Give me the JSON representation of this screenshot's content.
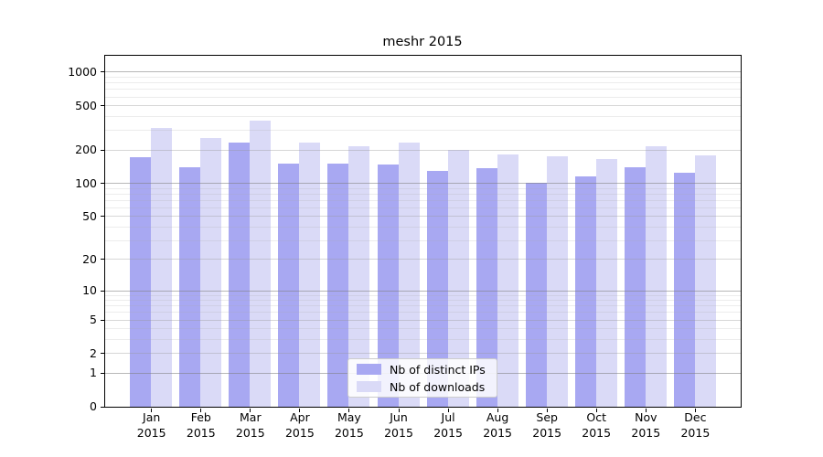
{
  "chart_data": {
    "type": "bar",
    "title": "meshr 2015",
    "categories": [
      "Jan",
      "Feb",
      "Mar",
      "Apr",
      "May",
      "Jun",
      "Jul",
      "Aug",
      "Sep",
      "Oct",
      "Nov",
      "Dec"
    ],
    "x_tick_second_line": "2015",
    "series": [
      {
        "name": "Nb of distinct IPs",
        "color": "#a8a8f2",
        "values": [
          170,
          137,
          230,
          150,
          150,
          146,
          127,
          135,
          100,
          115,
          137,
          123
        ]
      },
      {
        "name": "Nb of downloads",
        "color": "#dadaf7",
        "values": [
          310,
          255,
          365,
          230,
          215,
          230,
          197,
          182,
          174,
          165,
          215,
          176
        ]
      }
    ],
    "y_axis": {
      "scale": "log10(v+1)",
      "ticks": [
        0,
        1,
        2,
        5,
        10,
        20,
        50,
        100,
        200,
        500,
        1000
      ],
      "power_of_ten_ticks": [
        1,
        10,
        100,
        1000
      ],
      "minor_gridlines": [
        3,
        4,
        6,
        7,
        8,
        9,
        30,
        40,
        60,
        70,
        80,
        90,
        300,
        400,
        600,
        700,
        800,
        900
      ],
      "top_value": 1400
    },
    "grid": true,
    "legend_position": "lower center",
    "colors": {
      "spine": "#000000",
      "grid_power10": "#b0b0b0",
      "grid_major": "#d7d7d7",
      "grid_minor": "#ececec"
    }
  }
}
